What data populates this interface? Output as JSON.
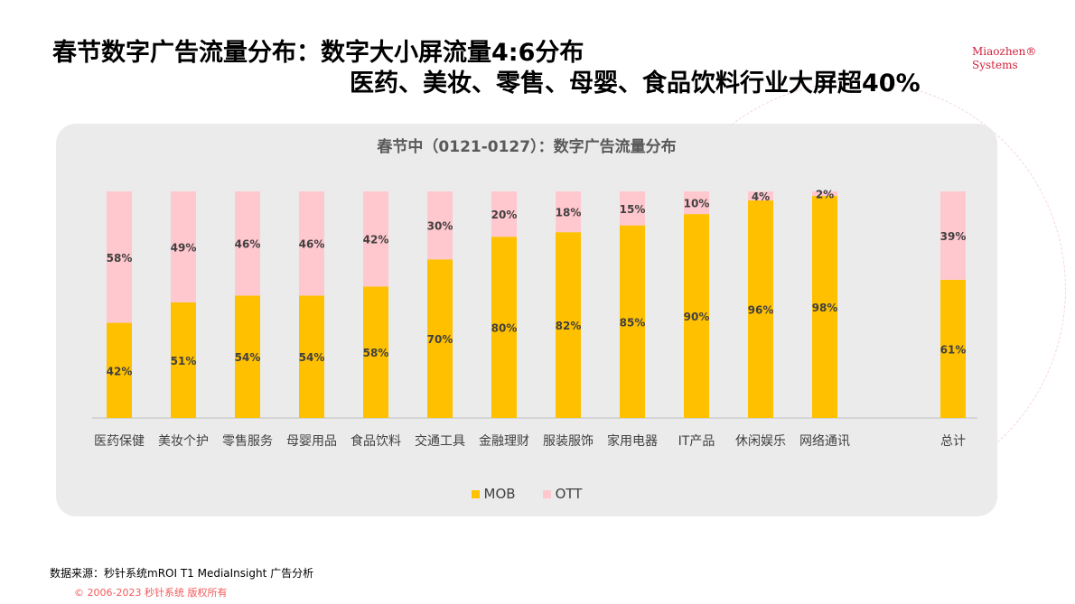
{
  "header": {
    "title_line1": "春节数字广告流量分布：数字大小屏流量4:6分布",
    "title_line2": "医药、美妆、零售、母婴、食品饮料行业大屏超40%",
    "logo_line1": "Miaozhen®",
    "logo_line2": "Systems"
  },
  "footer": {
    "source": "数据来源：秒针系统mROI T1 MediaInsight   广告分析",
    "copyright": "© 2006-2023 秒针系统 版权所有"
  },
  "colors": {
    "MOB": "#ffc000",
    "OTT": "#ffc7ce",
    "card": "#ebebeb",
    "logo": "#d0213a"
  },
  "chart_data": {
    "type": "bar",
    "stacked": true,
    "percent": true,
    "title": "春节中（0121-0127）：数字广告流量分布",
    "categories": [
      "医药保健",
      "美妆个护",
      "零售服务",
      "母婴用品",
      "食品饮料",
      "交通工具",
      "金融理财",
      "服装服饰",
      "家用电器",
      "IT产品",
      "休闲娱乐",
      "网络通讯",
      "总计"
    ],
    "series": [
      {
        "name": "MOB",
        "values": [
          42,
          51,
          54,
          54,
          58,
          70,
          80,
          82,
          85,
          90,
          96,
          98,
          61
        ]
      },
      {
        "name": "OTT",
        "values": [
          58,
          49,
          46,
          46,
          42,
          30,
          20,
          18,
          15,
          10,
          4,
          2,
          39
        ]
      }
    ],
    "ylim": [
      0,
      100
    ],
    "grid": false,
    "legend": "bottom"
  }
}
